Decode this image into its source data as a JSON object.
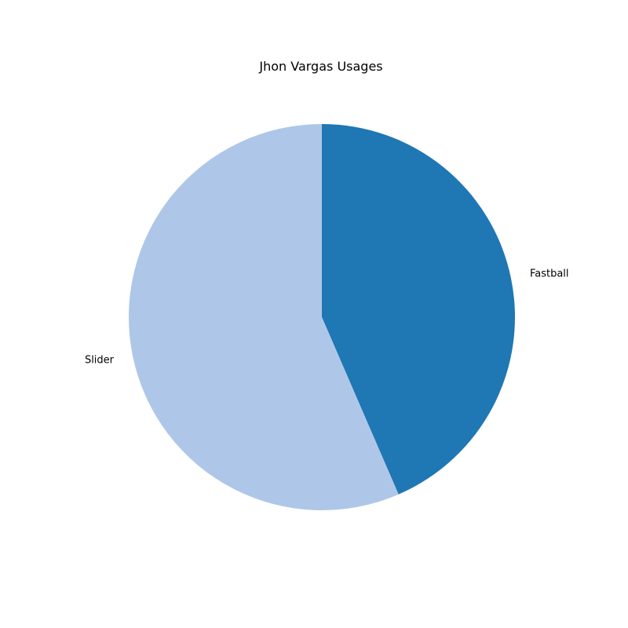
{
  "chart_data": {
    "type": "pie",
    "title": "Jhon Vargas Usages",
    "categories": [
      "Fastball",
      "Slider"
    ],
    "values": [
      43.5,
      56.5
    ],
    "colors": [
      "#1f77b4",
      "#aec7e8"
    ],
    "start": "top",
    "direction": "clockwise",
    "legend": "none"
  }
}
